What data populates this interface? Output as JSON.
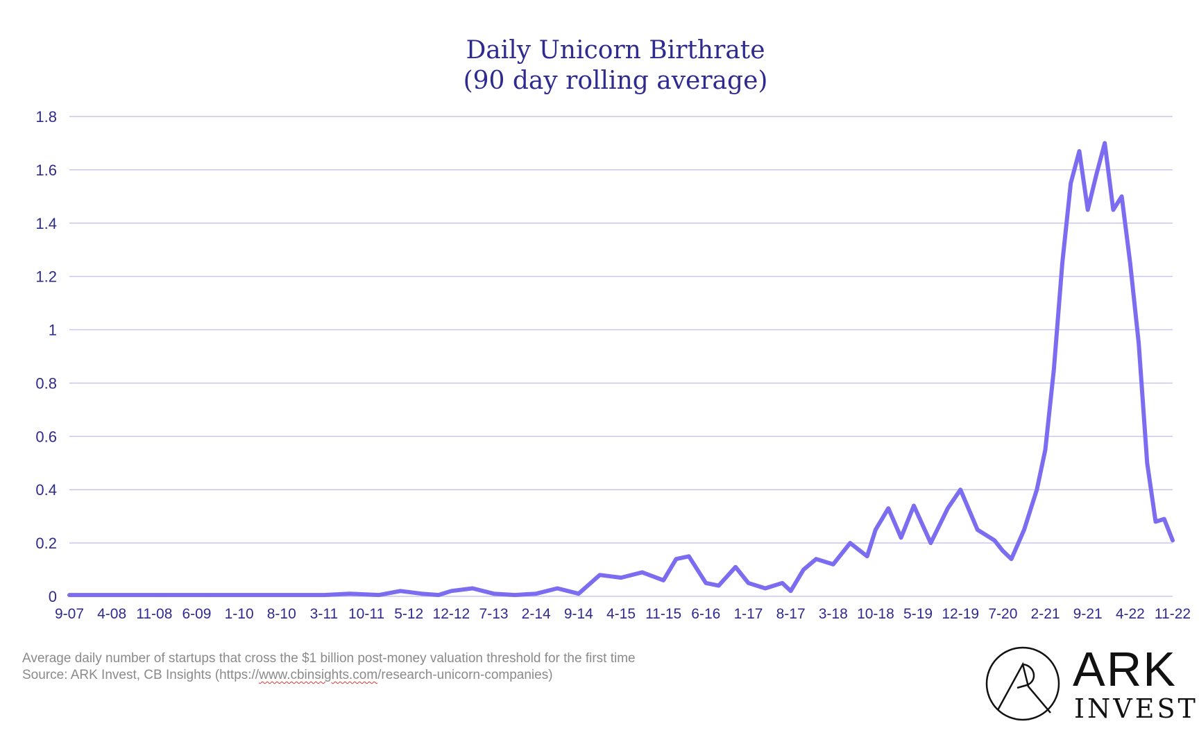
{
  "chart_data": {
    "type": "line",
    "title": "Daily Unicorn Birthrate",
    "subtitle": "(90 day rolling average)",
    "xlabel": "",
    "ylabel": "",
    "ylim": [
      0,
      1.8
    ],
    "grid": true,
    "y_ticks": [
      "0",
      "0.2",
      "0.4",
      "0.6",
      "0.8",
      "1",
      "1.2",
      "1.4",
      "1.6",
      "1.8"
    ],
    "x_ticks": [
      "9-07",
      "4-08",
      "11-08",
      "6-09",
      "1-10",
      "8-10",
      "3-11",
      "10-11",
      "5-12",
      "12-12",
      "7-13",
      "2-14",
      "9-14",
      "4-15",
      "11-15",
      "6-16",
      "1-17",
      "8-17",
      "3-18",
      "10-18",
      "5-19",
      "12-19",
      "7-20",
      "2-21",
      "9-21",
      "4-22",
      "11-22"
    ],
    "series": [
      {
        "name": "Daily unicorn births (90-day rolling average)",
        "color": "#7c6cf0",
        "x": [
          0,
          1,
          2,
          3,
          4,
          5,
          6,
          6.6,
          7.3,
          7.8,
          8.3,
          8.7,
          9.0,
          9.5,
          10.0,
          10.5,
          11.0,
          11.5,
          12.0,
          12.5,
          13.0,
          13.5,
          14.0,
          14.3,
          14.6,
          15.0,
          15.3,
          15.7,
          16.0,
          16.4,
          16.8,
          17.0,
          17.3,
          17.6,
          18.0,
          18.4,
          18.8,
          19.0,
          19.3,
          19.6,
          19.9,
          20.3,
          20.7,
          21.0,
          21.4,
          21.8,
          22.0,
          22.2,
          22.5,
          22.8,
          23.0,
          23.2,
          23.4,
          23.6,
          23.8,
          24.0,
          24.2,
          24.4,
          24.6,
          24.8,
          25.0,
          25.2,
          25.4,
          25.6,
          25.8,
          26.0
        ],
        "values": [
          0.005,
          0.005,
          0.005,
          0.005,
          0.005,
          0.005,
          0.005,
          0.01,
          0.005,
          0.02,
          0.01,
          0.005,
          0.02,
          0.03,
          0.01,
          0.005,
          0.01,
          0.03,
          0.01,
          0.08,
          0.07,
          0.09,
          0.06,
          0.14,
          0.15,
          0.05,
          0.04,
          0.11,
          0.05,
          0.03,
          0.05,
          0.02,
          0.1,
          0.14,
          0.12,
          0.2,
          0.15,
          0.25,
          0.33,
          0.22,
          0.34,
          0.2,
          0.33,
          0.4,
          0.25,
          0.21,
          0.17,
          0.14,
          0.25,
          0.4,
          0.55,
          0.85,
          1.25,
          1.55,
          1.67,
          1.45,
          1.58,
          1.7,
          1.45,
          1.5,
          1.25,
          0.95,
          0.5,
          0.28,
          0.29,
          0.21
        ]
      }
    ]
  },
  "footnote": {
    "note": "Average daily number of startups that cross the $1 billion post-money valuation threshold for the first time",
    "source_prefix": "Source: ARK Invest, CB Insights (https://",
    "source_link": "www.cbinsights.com",
    "source_suffix": "/research-unicorn-companies)"
  },
  "logo": {
    "word": "ARK",
    "sub": "INVEST"
  }
}
